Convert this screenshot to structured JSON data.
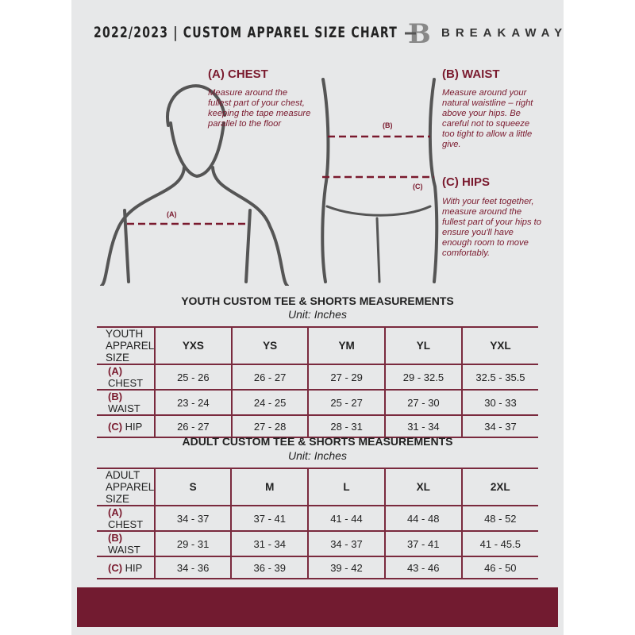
{
  "header": {
    "title": "2022/2023  |  CUSTOM APPAREL SIZE CHART",
    "brand": "BREAKAWAY"
  },
  "colors": {
    "accent": "#721b30",
    "background": "#e7e8e9"
  },
  "guides": [
    {
      "heading": "(A) CHEST",
      "text": "Measure around the fullest part of your chest, keeping the tape measure parallel to the floor",
      "marker": "(A)"
    },
    {
      "heading": "(B) WAIST",
      "text": "Measure around your natural waistline – right above your hips. Be careful not to squeeze too tight to allow a little give.",
      "marker": "(B)"
    },
    {
      "heading": "(C) HIPS",
      "text": "With your feet together, measure around the fullest part of your hips to ensure you'll have enough room to move comfortably.",
      "marker": "(C)"
    }
  ],
  "youth": {
    "title": "YOUTH CUSTOM TEE & SHORTS MEASUREMENTS",
    "unit": "Unit: Inches",
    "header": [
      "YOUTH APPAREL SIZE",
      "YXS",
      "YS",
      "YM",
      "YL",
      "YXL"
    ],
    "rows": [
      {
        "letter": "(A)",
        "label": "CHEST",
        "values": [
          "25 - 26",
          "26 - 27",
          "27 - 29",
          "29 - 32.5",
          "32.5 - 35.5"
        ]
      },
      {
        "letter": "(B)",
        "label": "WAIST",
        "values": [
          "23 - 24",
          "24 - 25",
          "25 - 27",
          "27 - 30",
          "30 - 33"
        ]
      },
      {
        "letter": "(C)",
        "label": "HIP",
        "values": [
          "26 - 27",
          "27 - 28",
          "28 - 31",
          "31 - 34",
          "34 - 37"
        ]
      }
    ]
  },
  "adult": {
    "title": "ADULT CUSTOM TEE & SHORTS MEASUREMENTS",
    "unit": "Unit: Inches",
    "header": [
      "ADULT APPAREL SIZE",
      "S",
      "M",
      "L",
      "XL",
      "2XL"
    ],
    "rows": [
      {
        "letter": "(A)",
        "label": "CHEST",
        "values": [
          "34 - 37",
          "37 - 41",
          "41 - 44",
          "44 - 48",
          "48 - 52"
        ]
      },
      {
        "letter": "(B)",
        "label": "WAIST",
        "values": [
          "29 - 31",
          "31 - 34",
          "34 - 37",
          "37 - 41",
          "41 - 45.5"
        ]
      },
      {
        "letter": "(C)",
        "label": "HIP",
        "values": [
          "34 - 36",
          "36 - 39",
          "39 - 42",
          "43 - 46",
          "46 - 50"
        ]
      }
    ]
  }
}
